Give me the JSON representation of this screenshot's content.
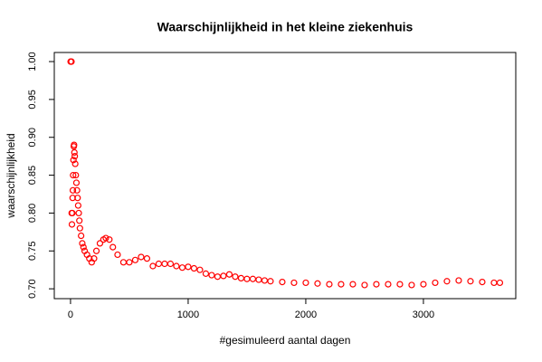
{
  "chart_data": {
    "type": "scatter",
    "title": "Waarschijnlijkheid in het kleine ziekenhuis",
    "x_label": "#gesimuleerd aantal dagen",
    "y_label": "waarschijnlijkheid",
    "color": "#ff0000",
    "x": [
      1,
      3,
      5,
      8,
      10,
      12,
      15,
      18,
      20,
      22,
      25,
      28,
      30,
      33,
      36,
      40,
      45,
      50,
      55,
      60,
      65,
      70,
      75,
      80,
      90,
      100,
      110,
      120,
      140,
      160,
      180,
      200,
      220,
      250,
      280,
      300,
      330,
      360,
      400,
      450,
      500,
      550,
      600,
      650,
      700,
      750,
      800,
      850,
      900,
      950,
      1000,
      1050,
      1100,
      1150,
      1200,
      1250,
      1300,
      1350,
      1400,
      1450,
      1500,
      1550,
      1600,
      1650,
      1700,
      1800,
      1900,
      2000,
      2100,
      2200,
      2300,
      2400,
      2500,
      2600,
      2700,
      2800,
      2900,
      3000,
      3100,
      3200,
      3300,
      3400,
      3500,
      3600,
      3650
    ],
    "values": [
      1.0,
      1.0,
      1.0,
      1.0,
      0.8,
      0.785,
      0.8,
      0.82,
      0.83,
      0.85,
      0.87,
      0.888,
      0.89,
      0.88,
      0.875,
      0.865,
      0.85,
      0.84,
      0.83,
      0.82,
      0.81,
      0.8,
      0.79,
      0.78,
      0.77,
      0.76,
      0.755,
      0.75,
      0.745,
      0.74,
      0.735,
      0.74,
      0.75,
      0.76,
      0.765,
      0.767,
      0.765,
      0.755,
      0.745,
      0.735,
      0.735,
      0.738,
      0.742,
      0.74,
      0.73,
      0.733,
      0.733,
      0.733,
      0.73,
      0.728,
      0.729,
      0.727,
      0.725,
      0.72,
      0.718,
      0.716,
      0.717,
      0.719,
      0.716,
      0.714,
      0.713,
      0.713,
      0.712,
      0.711,
      0.71,
      0.709,
      0.708,
      0.708,
      0.707,
      0.706,
      0.706,
      0.706,
      0.705,
      0.706,
      0.706,
      0.706,
      0.705,
      0.706,
      0.708,
      0.71,
      0.711,
      0.71,
      0.709,
      0.708,
      0.708
    ],
    "xlim": [
      -138,
      3785
    ],
    "ylim": [
      0.687,
      1.012
    ],
    "xticks": [
      0,
      1000,
      2000,
      3000
    ],
    "yticks": [
      {
        "value": 0.7,
        "label": "0.70"
      },
      0.75,
      {
        "value": 0.8,
        "label": "0.80"
      },
      0.85,
      {
        "value": 0.9,
        "label": "0.90"
      },
      0.95,
      {
        "value": 1.0,
        "label": "1.00"
      }
    ]
  }
}
